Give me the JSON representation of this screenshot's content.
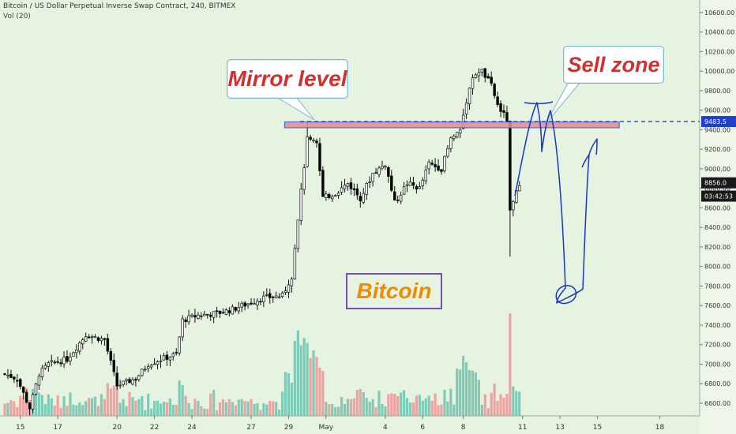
{
  "header": {
    "title": "Bitcoin / US Dollar Perpetual Inverse Swap Contract, 240, BITMEX",
    "volume_label": "Vol (20)"
  },
  "annotations": {
    "mirror_level": "Mirror level",
    "sell_zone": "Sell zone",
    "bitcoin_label": "Bitcoin"
  },
  "colors": {
    "background": "#e6f3e0",
    "candle_up": "#ffffff",
    "candle_down": "#000000",
    "volume_up": "#74c7b2",
    "volume_down": "#ef9a9a",
    "zone_fill": "#e88a8a",
    "zone_border": "#4a6fd0",
    "level_line": "#1a34c8",
    "callout_text": "#d23030",
    "bitcoin_text": "#f08c00",
    "bitcoin_border": "#7a4fb3",
    "drawing": "#1a34c8"
  },
  "chart_data": {
    "type": "candlestick",
    "title": "Bitcoin / US Dollar Perpetual Inverse Swap Contract, 240, BITMEX",
    "interval": "240",
    "ylim": [
      6500,
      10700
    ],
    "y_ticks": [
      6600,
      6800,
      7000,
      7200,
      7400,
      7600,
      7800,
      8000,
      8200,
      8400,
      8600,
      8800,
      9000,
      9200,
      9400,
      9600,
      9800,
      10000,
      10200,
      10400,
      10600
    ],
    "x_ticks": [
      "15",
      "17",
      "20",
      "22",
      "24",
      "27",
      "29",
      "May",
      "4",
      "6",
      "8",
      "11",
      "13",
      "15",
      "18"
    ],
    "x_tick_bar_index": [
      5,
      17,
      36,
      48,
      60,
      79,
      91,
      103,
      122,
      134,
      147,
      166,
      178,
      190,
      210
    ],
    "horizontal_level": {
      "value": 9483.5,
      "label": "9483.5"
    },
    "price_labels": [
      {
        "text": "8856.0",
        "value": 8856
      },
      {
        "text": "03:42:53",
        "value": 8720
      }
    ],
    "zone": {
      "from": 9420,
      "to": 9480,
      "bar_start": 91,
      "bar_end": 197
    },
    "volume_ymax": 6000,
    "anchors": [
      [
        0,
        6900
      ],
      [
        4,
        6850
      ],
      [
        8,
        6550
      ],
      [
        11,
        6900
      ],
      [
        14,
        7000
      ],
      [
        20,
        7050
      ],
      [
        26,
        7300
      ],
      [
        32,
        7250
      ],
      [
        36,
        6780
      ],
      [
        42,
        6850
      ],
      [
        46,
        7000
      ],
      [
        50,
        7050
      ],
      [
        55,
        7100
      ],
      [
        57,
        7450
      ],
      [
        62,
        7500
      ],
      [
        68,
        7520
      ],
      [
        73,
        7560
      ],
      [
        78,
        7620
      ],
      [
        83,
        7680
      ],
      [
        89,
        7700
      ],
      [
        92,
        7900
      ],
      [
        94,
        8500
      ],
      [
        97,
        9300
      ],
      [
        100,
        9250
      ],
      [
        102,
        8700
      ],
      [
        106,
        8750
      ],
      [
        110,
        8850
      ],
      [
        114,
        8700
      ],
      [
        118,
        8950
      ],
      [
        122,
        9050
      ],
      [
        125,
        8650
      ],
      [
        129,
        8850
      ],
      [
        133,
        8800
      ],
      [
        136,
        9050
      ],
      [
        140,
        9000
      ],
      [
        143,
        9300
      ],
      [
        146,
        9400
      ],
      [
        148,
        9700
      ],
      [
        150,
        9950
      ],
      [
        153,
        10000
      ],
      [
        156,
        9850
      ],
      [
        158,
        9650
      ],
      [
        160,
        9550
      ],
      [
        161,
        9500
      ],
      [
        162,
        8550
      ],
      [
        163,
        8650
      ],
      [
        165,
        8856
      ]
    ]
  }
}
